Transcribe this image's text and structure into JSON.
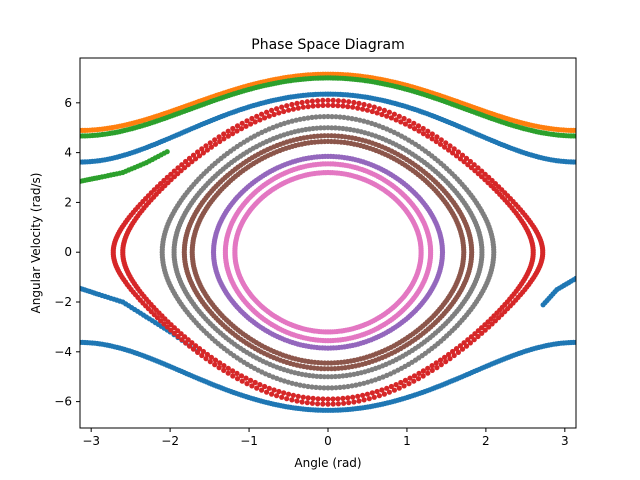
{
  "chart_data": {
    "type": "scatter",
    "title": "Phase Space Diagram",
    "xlabel": "Angle (rad)",
    "ylabel": "Angular Velocity (rad/s)",
    "xlim": [
      -3.1416,
      3.1416
    ],
    "ylim": [
      -7.06,
      7.8
    ],
    "xticks": [
      -3,
      -2,
      -1,
      0,
      1,
      2,
      3
    ],
    "yticks": [
      -6,
      -4,
      -2,
      0,
      2,
      4,
      6
    ],
    "grid": false,
    "legend": "none",
    "series": [
      {
        "color": "#1f77b4",
        "kind": "arc",
        "energy": 6.35,
        "theta_min": -3.1416,
        "theta_max": 3.1416,
        "direction": "negative",
        "points": 200
      },
      {
        "color": "#1f77b4",
        "kind": "arc",
        "energy": 6.35,
        "theta_min": -3.1416,
        "theta_max": 3.1416,
        "direction": "positive",
        "points": 200
      },
      {
        "color": "#1f77b4",
        "kind": "fragment",
        "x": [
          -3.14,
          -2.9,
          -2.6,
          -2.3,
          -2.0,
          -1.6
        ],
        "y": [
          -1.45,
          -1.7,
          -2.0,
          -2.6,
          -3.2,
          -4.1
        ]
      },
      {
        "color": "#1f77b4",
        "kind": "fragment",
        "x": [
          3.14,
          2.9,
          2.7
        ],
        "y": [
          -1.05,
          -1.5,
          -2.2
        ]
      },
      {
        "color": "#ff7f0e",
        "kind": "arc",
        "energy": 7.15,
        "theta_min": -3.1416,
        "theta_max": 3.1416,
        "direction": "positive",
        "points": 200
      },
      {
        "color": "#2ca02c",
        "kind": "arc",
        "energy": 7.0,
        "theta_min": -3.1416,
        "theta_max": 3.1416,
        "direction": "positive",
        "points": 200
      },
      {
        "color": "#2ca02c",
        "kind": "fragment",
        "x": [
          -3.14,
          -2.9,
          -2.6,
          -2.3,
          -2.0
        ],
        "y": [
          2.85,
          3.0,
          3.2,
          3.6,
          4.1
        ]
      },
      {
        "color": "#d62728",
        "kind": "orbit",
        "amplitude": 2.72,
        "omega": 6.1
      },
      {
        "color": "#d62728",
        "kind": "orbit",
        "amplitude": 2.6,
        "omega": 5.9
      },
      {
        "color": "#7f7f7f",
        "kind": "orbit",
        "amplitude": 2.1,
        "omega": 5.45
      },
      {
        "color": "#7f7f7f",
        "kind": "orbit",
        "amplitude": 1.95,
        "omega": 5.0
      },
      {
        "color": "#8c564b",
        "kind": "orbit",
        "amplitude": 1.82,
        "omega": 4.68
      },
      {
        "color": "#8c564b",
        "kind": "orbit",
        "amplitude": 1.72,
        "omega": 4.45
      },
      {
        "color": "#9467bd",
        "kind": "orbit",
        "amplitude": 1.45,
        "omega": 3.85
      },
      {
        "color": "#e377c2",
        "kind": "orbit",
        "amplitude": 1.3,
        "omega": 3.55
      },
      {
        "color": "#e377c2",
        "kind": "orbit",
        "amplitude": 1.18,
        "omega": 3.2
      }
    ]
  }
}
